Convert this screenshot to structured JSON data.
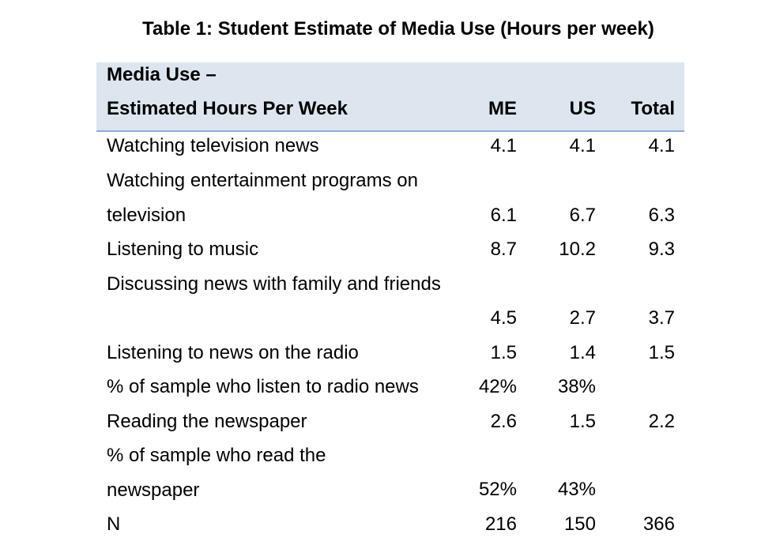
{
  "title": "Table 1:  Student Estimate of Media Use (Hours per week)",
  "header": {
    "line1": "Media Use –",
    "line2": "Estimated Hours Per Week",
    "col_me": "ME",
    "col_us": "US",
    "col_total": "Total"
  },
  "rows": [
    {
      "label": "Watching television news",
      "me": "4.1",
      "us": "4.1",
      "total": "4.1"
    },
    {
      "label": "Watching entertainment programs on television",
      "me": "6.1",
      "us": "6.7",
      "total": "6.3"
    },
    {
      "label": "Listening to music",
      "me": "8.7",
      "us": "10.2",
      "total": "9.3"
    },
    {
      "label": "Discussing news with family and friends",
      "me": "4.5",
      "us": "2.7",
      "total": "3.7"
    },
    {
      "label": "Listening to news on the radio",
      "me": "1.5",
      "us": "1.4",
      "total": "1.5"
    },
    {
      "label": "% of sample who listen to radio news",
      "me": "42%",
      "us": "38%",
      "total": ""
    },
    {
      "label": "Reading the newspaper",
      "me": "2.6",
      "us": "1.5",
      "total": "2.2"
    },
    {
      "label": "% of sample who read the newspaper",
      "me": "52%",
      "us": "43%",
      "total": ""
    },
    {
      "label": "N",
      "me": "216",
      "us": "150",
      "total": "366"
    }
  ],
  "colors": {
    "header_bg": "#dde6ef",
    "header_rule": "#8eaad6"
  }
}
